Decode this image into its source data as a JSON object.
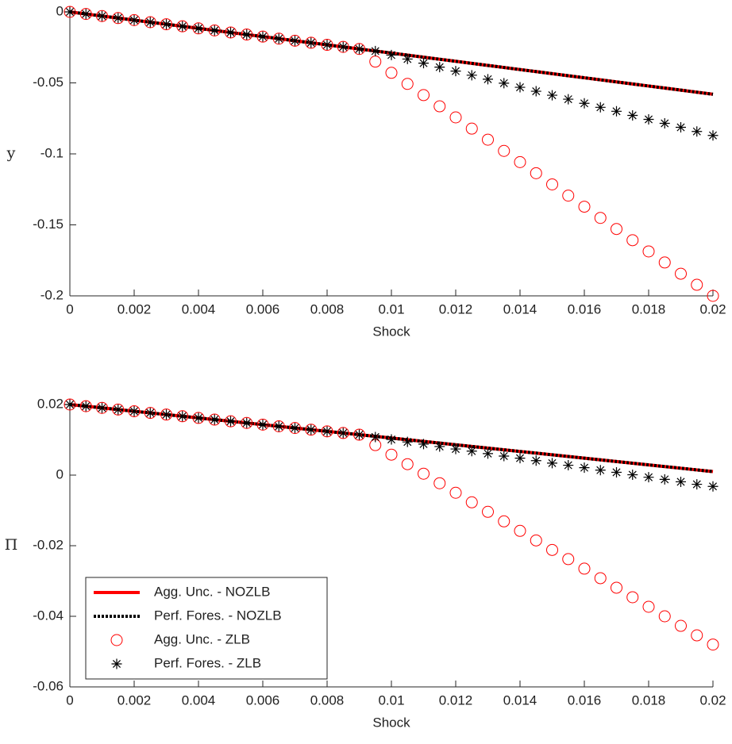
{
  "chart_data": [
    {
      "type": "line",
      "ylabel": "y",
      "xlabel": "Shock",
      "x": [
        0,
        0.0005,
        0.001,
        0.0015,
        0.002,
        0.0025,
        0.003,
        0.0035,
        0.004,
        0.0045,
        0.005,
        0.0055,
        0.006,
        0.0065,
        0.007,
        0.0075,
        0.008,
        0.0085,
        0.009,
        0.0095,
        0.01,
        0.0105,
        0.011,
        0.0115,
        0.012,
        0.0125,
        0.013,
        0.0135,
        0.014,
        0.0145,
        0.015,
        0.0155,
        0.016,
        0.0165,
        0.017,
        0.0175,
        0.018,
        0.0185,
        0.019,
        0.0195,
        0.02
      ],
      "xlim": [
        0,
        0.02
      ],
      "xticks": [
        0,
        0.002,
        0.004,
        0.006,
        0.008,
        0.01,
        0.012,
        0.014,
        0.016,
        0.018,
        0.02
      ],
      "ylim": [
        -0.2,
        0
      ],
      "yticks": [
        -0.2,
        -0.15,
        -0.1,
        -0.05,
        0
      ],
      "series": [
        {
          "color": "#ff0000",
          "style": "solid",
          "values": [
            0,
            -0.00145,
            -0.0029,
            -0.00435,
            -0.0058,
            -0.00725,
            -0.0087,
            -0.01015,
            -0.0116,
            -0.01305,
            -0.0145,
            -0.01595,
            -0.0174,
            -0.01885,
            -0.0203,
            -0.02175,
            -0.0232,
            -0.02465,
            -0.0261,
            -0.02755,
            -0.029,
            -0.03045,
            -0.0319,
            -0.03335,
            -0.0348,
            -0.03625,
            -0.0377,
            -0.03915,
            -0.0406,
            -0.04205,
            -0.0435,
            -0.04495,
            -0.0464,
            -0.04785,
            -0.0493,
            -0.05075,
            -0.0522,
            -0.05365,
            -0.0551,
            -0.05655,
            -0.058
          ]
        },
        {
          "color": "#000000",
          "style": "dotted",
          "values": [
            0,
            -0.00145,
            -0.0029,
            -0.00435,
            -0.0058,
            -0.00725,
            -0.0087,
            -0.01015,
            -0.0116,
            -0.01305,
            -0.0145,
            -0.01595,
            -0.0174,
            -0.01885,
            -0.0203,
            -0.02175,
            -0.0232,
            -0.02465,
            -0.0261,
            -0.02755,
            -0.029,
            -0.03045,
            -0.0319,
            -0.03335,
            -0.0348,
            -0.03625,
            -0.0377,
            -0.03915,
            -0.0406,
            -0.04205,
            -0.0435,
            -0.04495,
            -0.0464,
            -0.04785,
            -0.0493,
            -0.05075,
            -0.0522,
            -0.05365,
            -0.0551,
            -0.05655,
            -0.058
          ]
        },
        {
          "color": "#ff0000",
          "style": "circle",
          "values": [
            0,
            -0.00145,
            -0.0029,
            -0.00435,
            -0.0058,
            -0.00725,
            -0.0087,
            -0.01015,
            -0.0116,
            -0.01305,
            -0.0145,
            -0.01595,
            -0.0174,
            -0.01885,
            -0.0203,
            -0.02175,
            -0.0232,
            -0.02465,
            -0.0261,
            -0.035,
            -0.0429,
            -0.0507,
            -0.0586,
            -0.0665,
            -0.0743,
            -0.0822,
            -0.09,
            -0.0979,
            -0.1058,
            -0.1136,
            -0.1215,
            -0.1294,
            -0.1372,
            -0.1451,
            -0.1529,
            -0.1608,
            -0.1687,
            -0.1765,
            -0.1844,
            -0.1922,
            -0.2
          ]
        },
        {
          "color": "#000000",
          "style": "star",
          "values": [
            0,
            -0.00145,
            -0.0029,
            -0.00435,
            -0.0058,
            -0.00725,
            -0.0087,
            -0.01015,
            -0.0116,
            -0.01305,
            -0.0145,
            -0.01595,
            -0.0174,
            -0.01885,
            -0.0203,
            -0.02175,
            -0.0232,
            -0.02465,
            -0.0261,
            -0.0276,
            -0.0304,
            -0.0332,
            -0.0361,
            -0.0389,
            -0.0417,
            -0.0446,
            -0.0474,
            -0.0502,
            -0.0531,
            -0.0559,
            -0.0587,
            -0.0615,
            -0.0644,
            -0.0672,
            -0.07,
            -0.0729,
            -0.0757,
            -0.0785,
            -0.0813,
            -0.0842,
            -0.087
          ]
        }
      ]
    },
    {
      "type": "line",
      "ylabel": "Π",
      "xlabel": "Shock",
      "legend": "lower left",
      "x": [
        0,
        0.0005,
        0.001,
        0.0015,
        0.002,
        0.0025,
        0.003,
        0.0035,
        0.004,
        0.0045,
        0.005,
        0.0055,
        0.006,
        0.0065,
        0.007,
        0.0075,
        0.008,
        0.0085,
        0.009,
        0.0095,
        0.01,
        0.0105,
        0.011,
        0.0115,
        0.012,
        0.0125,
        0.013,
        0.0135,
        0.014,
        0.0145,
        0.015,
        0.0155,
        0.016,
        0.0165,
        0.017,
        0.0175,
        0.018,
        0.0185,
        0.019,
        0.0195,
        0.02
      ],
      "xlim": [
        0,
        0.02
      ],
      "xticks": [
        0,
        0.002,
        0.004,
        0.006,
        0.008,
        0.01,
        0.012,
        0.014,
        0.016,
        0.018,
        0.02
      ],
      "ylim": [
        -0.06,
        0.02
      ],
      "yticks": [
        -0.06,
        -0.04,
        -0.02,
        0,
        0.02
      ],
      "series": [
        {
          "name": "Agg. Unc. - NOZLB",
          "color": "#ff0000",
          "style": "solid",
          "values": [
            0.02,
            0.019525,
            0.01905,
            0.018575,
            0.0181,
            0.017625,
            0.01715,
            0.016675,
            0.0162,
            0.015725,
            0.01525,
            0.014775,
            0.0143,
            0.013825,
            0.01335,
            0.012875,
            0.0124,
            0.011925,
            0.01145,
            0.010975,
            0.0105,
            0.010025,
            0.00955,
            0.009075,
            0.0086,
            0.008125,
            0.00765,
            0.007175,
            0.0067,
            0.006225,
            0.00575,
            0.005275,
            0.0048,
            0.004325,
            0.00385,
            0.003375,
            0.0029,
            0.002425,
            0.00195,
            0.001475,
            0.001
          ]
        },
        {
          "name": "Perf. Fores. - NOZLB",
          "color": "#000000",
          "style": "dotted",
          "values": [
            0.02,
            0.019525,
            0.01905,
            0.018575,
            0.0181,
            0.017625,
            0.01715,
            0.016675,
            0.0162,
            0.015725,
            0.01525,
            0.014775,
            0.0143,
            0.013825,
            0.01335,
            0.012875,
            0.0124,
            0.011925,
            0.01145,
            0.010975,
            0.0105,
            0.010025,
            0.00955,
            0.009075,
            0.0086,
            0.008125,
            0.00765,
            0.007175,
            0.0067,
            0.006225,
            0.00575,
            0.005275,
            0.0048,
            0.004325,
            0.00385,
            0.003375,
            0.0029,
            0.002425,
            0.00195,
            0.001475,
            0.001
          ]
        },
        {
          "name": "Agg. Unc. - ZLB",
          "color": "#ff0000",
          "style": "circle",
          "values": [
            0.02,
            0.019525,
            0.01905,
            0.018575,
            0.0181,
            0.017625,
            0.01715,
            0.016675,
            0.0162,
            0.015725,
            0.01525,
            0.014775,
            0.0143,
            0.013825,
            0.01335,
            0.012875,
            0.0124,
            0.011925,
            0.01145,
            0.0085,
            0.0058,
            0.0031,
            0.0004,
            -0.0023,
            -0.005,
            -0.0077,
            -0.0104,
            -0.0131,
            -0.0158,
            -0.0185,
            -0.0212,
            -0.0238,
            -0.0265,
            -0.0292,
            -0.0319,
            -0.0346,
            -0.0373,
            -0.04,
            -0.0427,
            -0.0454,
            -0.048
          ]
        },
        {
          "name": "Perf. Fores. - ZLB",
          "color": "#000000",
          "style": "star",
          "values": [
            0.02,
            0.019525,
            0.01905,
            0.018575,
            0.0181,
            0.017625,
            0.01715,
            0.016675,
            0.0162,
            0.015725,
            0.01525,
            0.014775,
            0.0143,
            0.013825,
            0.01335,
            0.012875,
            0.0124,
            0.011925,
            0.01145,
            0.0108,
            0.0101,
            0.0094,
            0.0088,
            0.0081,
            0.0074,
            0.0068,
            0.0061,
            0.0054,
            0.0048,
            0.0041,
            0.0034,
            0.0028,
            0.0021,
            0.0014,
            0.0008,
            0.0001,
            -0.0006,
            -0.0012,
            -0.0019,
            -0.0026,
            -0.0032
          ]
        }
      ]
    }
  ]
}
